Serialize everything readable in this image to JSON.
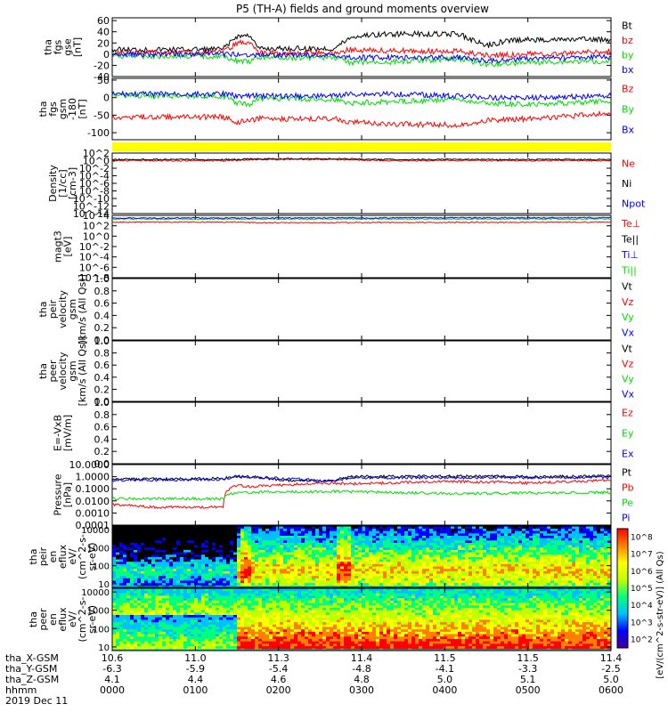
{
  "title": "P5 (TH-A) fields and ground moments overview",
  "colors": {
    "black": "#000000",
    "red": "#ff0000",
    "green": "#00dd00",
    "blue": "#0000ff",
    "yellow": "#ffff00",
    "cyan": "#00c0c0"
  },
  "panels": [
    {
      "id": "fgs_gse",
      "ylabel": [
        "tha",
        "fgs",
        "gse",
        "[nT]"
      ],
      "ticks": [
        "60",
        "40",
        "20",
        "0",
        "-20",
        "-40"
      ],
      "legend": [
        {
          "t": "Bt",
          "c": "black"
        },
        {
          "t": "bz",
          "c": "red"
        },
        {
          "t": "by",
          "c": "green"
        },
        {
          "t": "bx",
          "c": "blue"
        }
      ]
    },
    {
      "id": "fgs_gsm",
      "ylabel": [
        "tha",
        "fgs",
        "gsm",
        "-180",
        "[nT]"
      ],
      "ticks": [
        "50",
        "0",
        "-50",
        "-100"
      ],
      "legend": [
        {
          "t": "Bz",
          "c": "red"
        },
        {
          "t": "By",
          "c": "green"
        },
        {
          "t": "Bx",
          "c": "blue"
        }
      ]
    },
    {
      "id": "state",
      "ylabel": [],
      "ticks": [],
      "legend": []
    },
    {
      "id": "density",
      "ylabel": [
        "Density",
        "[1/cc]",
        "[cm-3]"
      ],
      "ticks": [
        "10^2",
        "10^0",
        "10^-2",
        "10^-4",
        "10^-6",
        "10^-8",
        "10^-10",
        "10^-12",
        "10^-14"
      ],
      "legend": [
        {
          "t": "Ne",
          "c": "red"
        },
        {
          "t": "Ni",
          "c": "black"
        },
        {
          "t": "Npot",
          "c": "blue"
        }
      ]
    },
    {
      "id": "temp",
      "ylabel": [
        "magt3",
        "[eV]"
      ],
      "ticks": [
        "10^4",
        "10^2",
        "10^0",
        "10^-2",
        "10^-4",
        "10^-6",
        "10^-8"
      ],
      "legend": [
        {
          "t": "Te⊥",
          "c": "red"
        },
        {
          "t": "Te||",
          "c": "black"
        },
        {
          "t": "Ti⊥",
          "c": "blue"
        },
        {
          "t": "Ti||",
          "c": "green"
        }
      ]
    },
    {
      "id": "peir_vel",
      "ylabel": [
        "tha",
        "peir",
        "velocity",
        "gsm",
        "[km/s (All Qs)]"
      ],
      "ticks": [
        "1.0",
        "0.8",
        "0.6",
        "0.4",
        "0.2",
        "0.0"
      ],
      "legend": [
        {
          "t": "Vt",
          "c": "black"
        },
        {
          "t": "Vz",
          "c": "red"
        },
        {
          "t": "Vy",
          "c": "green"
        },
        {
          "t": "Vx",
          "c": "blue"
        }
      ]
    },
    {
      "id": "peer_vel",
      "ylabel": [
        "tha",
        "peer",
        "velocity",
        "gsm",
        "[km/s (All Qs)]"
      ],
      "ticks": [
        "1.0",
        "0.8",
        "0.6",
        "0.4",
        "0.2",
        "0.0"
      ],
      "legend": [
        {
          "t": "Vt",
          "c": "black"
        },
        {
          "t": "Vz",
          "c": "red"
        },
        {
          "t": "Vy",
          "c": "green"
        },
        {
          "t": "Vx",
          "c": "blue"
        }
      ]
    },
    {
      "id": "efield",
      "ylabel": [
        "E=-VxB",
        "[mV/m]"
      ],
      "ticks": [
        "1.0",
        "0.8",
        "0.6",
        "0.4",
        "0.2",
        "0.0"
      ],
      "legend": [
        {
          "t": "Ez",
          "c": "red"
        },
        {
          "t": "Ey",
          "c": "green"
        },
        {
          "t": "Ex",
          "c": "blue"
        }
      ]
    },
    {
      "id": "pressure",
      "ylabel": [
        "Pressure",
        "[nPa]"
      ],
      "ticks": [
        "10.0000",
        "1.0000",
        "0.1000",
        "0.0100",
        "0.0010",
        "0.0001"
      ],
      "legend": [
        {
          "t": "Pt",
          "c": "black"
        },
        {
          "t": "Pb",
          "c": "red"
        },
        {
          "t": "Pe",
          "c": "green"
        },
        {
          "t": "Pi",
          "c": "blue"
        }
      ]
    },
    {
      "id": "peir_spec",
      "ylabel": [
        "tha",
        "peir",
        "en",
        "eflux",
        "eV/",
        "(cm^2-s-",
        "sr-eV)"
      ],
      "ticks": [
        "10000",
        "1000",
        "100",
        "10"
      ],
      "legend": []
    },
    {
      "id": "peer_spec",
      "ylabel": [
        "tha",
        "peer",
        "en",
        "eflux",
        "eV/",
        "(cm^2-s-",
        "sr-eV)"
      ],
      "ticks": [
        "10000",
        "1000",
        "100",
        "10"
      ],
      "legend": []
    }
  ],
  "colorbar": {
    "label": "[eV/(cm^2-s-str-eV)] (All Qs)",
    "ticks": [
      "10^8",
      "10^7",
      "10^6",
      "10^5",
      "10^4",
      "10^3",
      "10^2"
    ]
  },
  "footer": {
    "labels": [
      "tha_X-GSM",
      "tha_Y-GSM",
      "tha_Z-GSM",
      "hhmm",
      "2019 Dec 11"
    ],
    "columns": [
      [
        "10.6",
        "-6.3",
        "4.1",
        "0000"
      ],
      [
        "11.0",
        "-5.9",
        "4.4",
        "0100"
      ],
      [
        "11.3",
        "-5.4",
        "4.6",
        "0200"
      ],
      [
        "11.4",
        "-4.8",
        "4.8",
        "0300"
      ],
      [
        "11.5",
        "-4.1",
        "5.0",
        "0400"
      ],
      [
        "11.5",
        "-3.3",
        "5.1",
        "0500"
      ],
      [
        "11.4",
        "-2.5",
        "5.0",
        "0600"
      ]
    ]
  },
  "chart_data": {
    "type": "line",
    "title": "P5 (TH-A) fields and ground moments overview",
    "x_axis": {
      "label": "hhmm",
      "ticks": [
        "0000",
        "0100",
        "0200",
        "0300",
        "0400",
        "0500",
        "0600"
      ],
      "date": "2019 Dec 11"
    },
    "series": [
      {
        "panel": "fgs_gse",
        "name": "Bt",
        "color": "black",
        "points": [
          [
            0,
            8
          ],
          [
            80,
            9
          ],
          [
            90,
            32
          ],
          [
            100,
            34
          ],
          [
            105,
            10
          ],
          [
            160,
            10
          ],
          [
            172,
            30
          ],
          [
            183,
            34
          ],
          [
            200,
            36
          ],
          [
            250,
            36
          ],
          [
            270,
            15
          ],
          [
            285,
            24
          ],
          [
            300,
            26
          ],
          [
            360,
            26
          ]
        ]
      },
      {
        "panel": "fgs_gse",
        "name": "bz",
        "color": "red",
        "points": [
          [
            0,
            3
          ],
          [
            80,
            3
          ],
          [
            90,
            20
          ],
          [
            100,
            22
          ],
          [
            105,
            2
          ],
          [
            160,
            2
          ],
          [
            172,
            8
          ],
          [
            200,
            6
          ],
          [
            250,
            5
          ],
          [
            270,
            -2
          ],
          [
            300,
            0
          ],
          [
            360,
            5
          ]
        ]
      },
      {
        "panel": "fgs_gse",
        "name": "by",
        "color": "green",
        "points": [
          [
            0,
            -3
          ],
          [
            80,
            -4
          ],
          [
            90,
            -12
          ],
          [
            100,
            -14
          ],
          [
            105,
            -6
          ],
          [
            160,
            -6
          ],
          [
            172,
            -15
          ],
          [
            200,
            -14
          ],
          [
            250,
            -8
          ],
          [
            270,
            -18
          ],
          [
            300,
            -15
          ],
          [
            360,
            -12
          ]
        ]
      },
      {
        "panel": "fgs_gse",
        "name": "bx",
        "color": "blue",
        "points": [
          [
            0,
            0
          ],
          [
            80,
            0
          ],
          [
            90,
            0
          ],
          [
            105,
            -1
          ],
          [
            160,
            -2
          ],
          [
            172,
            -6
          ],
          [
            200,
            -6
          ],
          [
            250,
            -6
          ],
          [
            270,
            -12
          ],
          [
            300,
            -8
          ],
          [
            360,
            -5
          ]
        ]
      },
      {
        "panel": "fgs_gsm",
        "name": "Bz",
        "color": "red",
        "points": [
          [
            0,
            -55
          ],
          [
            80,
            -55
          ],
          [
            90,
            -70
          ],
          [
            105,
            -60
          ],
          [
            160,
            -60
          ],
          [
            172,
            -70
          ],
          [
            200,
            -75
          ],
          [
            250,
            -78
          ],
          [
            270,
            -65
          ],
          [
            300,
            -60
          ],
          [
            360,
            -45
          ]
        ]
      },
      {
        "panel": "fgs_gsm",
        "name": "By",
        "color": "green",
        "points": [
          [
            0,
            5
          ],
          [
            80,
            5
          ],
          [
            90,
            -15
          ],
          [
            100,
            -20
          ],
          [
            105,
            -2
          ],
          [
            160,
            -5
          ],
          [
            172,
            -15
          ],
          [
            200,
            -12
          ],
          [
            250,
            -5
          ],
          [
            270,
            -15
          ],
          [
            300,
            -20
          ],
          [
            360,
            -10
          ]
        ]
      },
      {
        "panel": "fgs_gsm",
        "name": "Bx",
        "color": "blue",
        "points": [
          [
            0,
            10
          ],
          [
            80,
            10
          ],
          [
            90,
            5
          ],
          [
            105,
            5
          ],
          [
            160,
            5
          ],
          [
            172,
            10
          ],
          [
            200,
            10
          ],
          [
            250,
            5
          ],
          [
            270,
            0
          ],
          [
            300,
            0
          ],
          [
            360,
            5
          ]
        ]
      },
      {
        "panel": "density",
        "name": "Ne",
        "color": "red",
        "points": [
          [
            0,
            1
          ],
          [
            90,
            1
          ],
          [
            100,
            2
          ],
          [
            160,
            2
          ],
          [
            200,
            1
          ],
          [
            360,
            1
          ]
        ]
      },
      {
        "panel": "density",
        "name": "Ni",
        "color": "black",
        "points": [
          [
            0,
            2
          ],
          [
            90,
            2
          ],
          [
            100,
            3
          ],
          [
            160,
            3
          ],
          [
            200,
            2
          ],
          [
            360,
            2
          ]
        ]
      },
      {
        "panel": "temp",
        "name": "Te⊥",
        "color": "red",
        "points": [
          [
            0,
            500
          ],
          [
            90,
            500
          ],
          [
            100,
            400
          ],
          [
            160,
            400
          ],
          [
            360,
            500
          ]
        ]
      },
      {
        "panel": "temp",
        "name": "Ti||",
        "color": "green",
        "points": [
          [
            0,
            2000
          ],
          [
            360,
            2000
          ]
        ]
      },
      {
        "panel": "temp",
        "name": "Ti⊥",
        "color": "blue",
        "points": [
          [
            0,
            3000
          ],
          [
            360,
            3500
          ]
        ]
      },
      {
        "panel": "pressure",
        "name": "Pt",
        "color": "black",
        "points": [
          [
            0,
            0.6
          ],
          [
            80,
            0.7
          ],
          [
            90,
            1.1
          ],
          [
            100,
            1.0
          ],
          [
            120,
            0.5
          ],
          [
            160,
            0.45
          ],
          [
            172,
            1.0
          ],
          [
            250,
            1.1
          ],
          [
            300,
            1.0
          ],
          [
            360,
            1.1
          ]
        ]
      },
      {
        "panel": "pressure",
        "name": "Pb",
        "color": "red",
        "points": [
          [
            0,
            0.005
          ],
          [
            30,
            0.003
          ],
          [
            80,
            0.003
          ],
          [
            90,
            0.2
          ],
          [
            100,
            0.15
          ],
          [
            160,
            0.3
          ],
          [
            172,
            0.25
          ],
          [
            250,
            0.4
          ],
          [
            300,
            0.3
          ],
          [
            360,
            0.5
          ]
        ]
      },
      {
        "panel": "pressure",
        "name": "Pe",
        "color": "green",
        "points": [
          [
            0,
            0.015
          ],
          [
            80,
            0.015
          ],
          [
            90,
            0.05
          ],
          [
            160,
            0.06
          ],
          [
            200,
            0.05
          ],
          [
            250,
            0.04
          ],
          [
            360,
            0.05
          ]
        ]
      },
      {
        "panel": "pressure",
        "name": "Pi",
        "color": "blue",
        "points": [
          [
            0,
            0.5
          ],
          [
            80,
            0.6
          ],
          [
            90,
            1.0
          ],
          [
            160,
            0.4
          ],
          [
            172,
            0.8
          ],
          [
            360,
            0.9
          ]
        ]
      }
    ]
  }
}
